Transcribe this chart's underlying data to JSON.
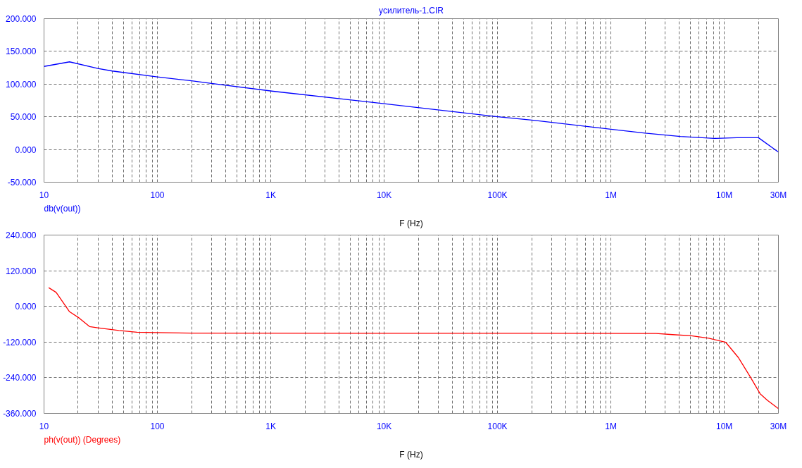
{
  "chart_data": [
    {
      "type": "line",
      "title": "усилитель-1.CIR",
      "xlabel": "F (Hz)",
      "annotations": [
        "db(v(out))"
      ],
      "log": "x",
      "grid": true,
      "xlim": [
        10,
        30000000
      ],
      "ylim": [
        -50,
        200
      ],
      "xticks": [
        {
          "value": 10,
          "label": "10"
        },
        {
          "value": 100,
          "label": "100"
        },
        {
          "value": 1000,
          "label": "1K"
        },
        {
          "value": 10000,
          "label": "10K"
        },
        {
          "value": 100000,
          "label": "100K"
        },
        {
          "value": 1000000,
          "label": "1M"
        },
        {
          "value": 10000000,
          "label": "10M"
        },
        {
          "value": 30000000,
          "label": "30M"
        },
        {
          "value": 20,
          "label": null
        },
        {
          "value": 30,
          "label": null
        },
        {
          "value": 40,
          "label": null
        },
        {
          "value": 50,
          "label": null
        },
        {
          "value": 60,
          "label": null
        },
        {
          "value": 70,
          "label": null
        },
        {
          "value": 80,
          "label": null
        },
        {
          "value": 90,
          "label": null
        },
        {
          "value": 200,
          "label": null
        },
        {
          "value": 300,
          "label": null
        },
        {
          "value": 400,
          "label": null
        },
        {
          "value": 500,
          "label": null
        },
        {
          "value": 600,
          "label": null
        },
        {
          "value": 700,
          "label": null
        },
        {
          "value": 800,
          "label": null
        },
        {
          "value": 900,
          "label": null
        },
        {
          "value": 2000,
          "label": null
        },
        {
          "value": 3000,
          "label": null
        },
        {
          "value": 4000,
          "label": null
        },
        {
          "value": 5000,
          "label": null
        },
        {
          "value": 6000,
          "label": null
        },
        {
          "value": 7000,
          "label": null
        },
        {
          "value": 8000,
          "label": null
        },
        {
          "value": 9000,
          "label": null
        },
        {
          "value": 20000,
          "label": null
        },
        {
          "value": 30000,
          "label": null
        },
        {
          "value": 40000,
          "label": null
        },
        {
          "value": 50000,
          "label": null
        },
        {
          "value": 60000,
          "label": null
        },
        {
          "value": 70000,
          "label": null
        },
        {
          "value": 80000,
          "label": null
        },
        {
          "value": 90000,
          "label": null
        },
        {
          "value": 200000,
          "label": null
        },
        {
          "value": 300000,
          "label": null
        },
        {
          "value": 400000,
          "label": null
        },
        {
          "value": 500000,
          "label": null
        },
        {
          "value": 600000,
          "label": null
        },
        {
          "value": 700000,
          "label": null
        },
        {
          "value": 800000,
          "label": null
        },
        {
          "value": 900000,
          "label": null
        },
        {
          "value": 2000000,
          "label": null
        },
        {
          "value": 3000000,
          "label": null
        },
        {
          "value": 4000000,
          "label": null
        },
        {
          "value": 5000000,
          "label": null
        },
        {
          "value": 6000000,
          "label": null
        },
        {
          "value": 7000000,
          "label": null
        },
        {
          "value": 8000000,
          "label": null
        },
        {
          "value": 9000000,
          "label": null
        },
        {
          "value": 20000000,
          "label": null
        }
      ],
      "yticks": [
        {
          "value": 200,
          "label": "200.000"
        },
        {
          "value": 150,
          "label": "150.000"
        },
        {
          "value": 100,
          "label": "100.000"
        },
        {
          "value": 50,
          "label": "50.000"
        },
        {
          "value": 0,
          "label": "0.000"
        },
        {
          "value": -50,
          "label": "-50.000"
        }
      ],
      "series": [
        {
          "color": "#0000ff",
          "x": [
            10,
            16.8,
            29.8,
            40,
            100,
            200,
            300,
            1050,
            10000,
            100000,
            200000,
            1000000,
            2000000,
            4100000,
            8200000,
            12900000,
            20000000,
            30000000
          ],
          "values": [
            127,
            134,
            124,
            120,
            111,
            105,
            101,
            89,
            70,
            50,
            45,
            31,
            25,
            20,
            17,
            18,
            18,
            -4
          ]
        }
      ]
    },
    {
      "type": "line",
      "xlabel": "F (Hz)",
      "annotations": [
        "ph(v(out)) (Degrees)"
      ],
      "log": "x",
      "grid": true,
      "xlim": [
        10,
        30000000
      ],
      "ylim": [
        -360,
        240
      ],
      "xticks": [
        {
          "value": 10,
          "label": "10"
        },
        {
          "value": 100,
          "label": "100"
        },
        {
          "value": 1000,
          "label": "1K"
        },
        {
          "value": 10000,
          "label": "10K"
        },
        {
          "value": 100000,
          "label": "100K"
        },
        {
          "value": 1000000,
          "label": "1M"
        },
        {
          "value": 10000000,
          "label": "10M"
        },
        {
          "value": 30000000,
          "label": "30M"
        },
        {
          "value": 20,
          "label": null
        },
        {
          "value": 30,
          "label": null
        },
        {
          "value": 40,
          "label": null
        },
        {
          "value": 50,
          "label": null
        },
        {
          "value": 60,
          "label": null
        },
        {
          "value": 70,
          "label": null
        },
        {
          "value": 80,
          "label": null
        },
        {
          "value": 90,
          "label": null
        },
        {
          "value": 200,
          "label": null
        },
        {
          "value": 300,
          "label": null
        },
        {
          "value": 400,
          "label": null
        },
        {
          "value": 500,
          "label": null
        },
        {
          "value": 600,
          "label": null
        },
        {
          "value": 700,
          "label": null
        },
        {
          "value": 800,
          "label": null
        },
        {
          "value": 900,
          "label": null
        },
        {
          "value": 2000,
          "label": null
        },
        {
          "value": 3000,
          "label": null
        },
        {
          "value": 4000,
          "label": null
        },
        {
          "value": 5000,
          "label": null
        },
        {
          "value": 6000,
          "label": null
        },
        {
          "value": 7000,
          "label": null
        },
        {
          "value": 8000,
          "label": null
        },
        {
          "value": 9000,
          "label": null
        },
        {
          "value": 20000,
          "label": null
        },
        {
          "value": 30000,
          "label": null
        },
        {
          "value": 40000,
          "label": null
        },
        {
          "value": 50000,
          "label": null
        },
        {
          "value": 60000,
          "label": null
        },
        {
          "value": 70000,
          "label": null
        },
        {
          "value": 80000,
          "label": null
        },
        {
          "value": 90000,
          "label": null
        },
        {
          "value": 200000,
          "label": null
        },
        {
          "value": 300000,
          "label": null
        },
        {
          "value": 400000,
          "label": null
        },
        {
          "value": 500000,
          "label": null
        },
        {
          "value": 600000,
          "label": null
        },
        {
          "value": 700000,
          "label": null
        },
        {
          "value": 800000,
          "label": null
        },
        {
          "value": 900000,
          "label": null
        },
        {
          "value": 2000000,
          "label": null
        },
        {
          "value": 3000000,
          "label": null
        },
        {
          "value": 4000000,
          "label": null
        },
        {
          "value": 5000000,
          "label": null
        },
        {
          "value": 6000000,
          "label": null
        },
        {
          "value": 7000000,
          "label": null
        },
        {
          "value": 8000000,
          "label": null
        },
        {
          "value": 9000000,
          "label": null
        },
        {
          "value": 20000000,
          "label": null
        }
      ],
      "yticks": [
        {
          "value": 240,
          "label": "240.000"
        },
        {
          "value": 120,
          "label": "120.000"
        },
        {
          "value": 0,
          "label": "0.000"
        },
        {
          "value": -120,
          "label": "-120.000"
        },
        {
          "value": -240,
          "label": "-240.000"
        },
        {
          "value": -360,
          "label": "-360.000"
        }
      ],
      "series": [
        {
          "color": "#ff0000",
          "x": [
            11,
            12.8,
            16.8,
            20.4,
            25.2,
            29.8,
            45.7,
            66,
            100,
            200,
            2500000,
            3500000,
            5100000,
            7300000,
            10300000,
            13300000,
            17000000,
            20700000,
            24000000,
            30000000
          ],
          "values": [
            63,
            47,
            -18,
            -39,
            -68,
            -72,
            -81,
            -87,
            -88,
            -90,
            -91,
            -95,
            -99,
            -107,
            -121,
            -172,
            -238,
            -294,
            -316,
            -344
          ]
        }
      ]
    }
  ]
}
